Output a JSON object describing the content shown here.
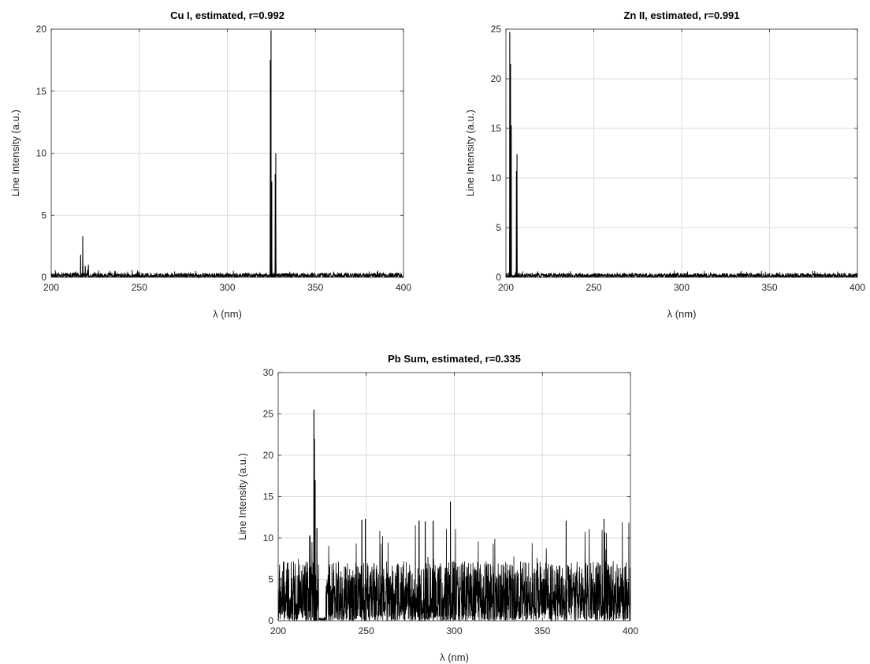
{
  "chart_data": [
    {
      "type": "line",
      "title": "Cu I, estimated, r=0.992",
      "xlabel": "λ (nm)",
      "ylabel": "Line Intensity (a.u.)",
      "xlim": [
        200,
        400
      ],
      "ylim": [
        0,
        20
      ],
      "xticks": [
        "200",
        "250",
        "300",
        "350",
        "400"
      ],
      "yticks": [
        "0",
        "5",
        "10",
        "15",
        "20"
      ],
      "grid": true,
      "series": [
        {
          "color": "#000000",
          "noise_floor": 0.3,
          "peaks": [
            {
              "x": 216.7,
              "y": 1.8
            },
            {
              "x": 217.9,
              "y": 3.3
            },
            {
              "x": 219.3,
              "y": 0.9
            },
            {
              "x": 221.1,
              "y": 1.0
            },
            {
              "x": 324.4,
              "y": 17.5
            },
            {
              "x": 324.8,
              "y": 19.9
            },
            {
              "x": 325.2,
              "y": 7.7
            },
            {
              "x": 327.2,
              "y": 8.3
            },
            {
              "x": 327.5,
              "y": 10.0
            }
          ]
        }
      ]
    },
    {
      "type": "line",
      "title": "Zn II, estimated, r=0.991",
      "xlabel": "λ (nm)",
      "ylabel": "Line Intensity (a.u.)",
      "xlim": [
        200,
        400
      ],
      "ylim": [
        0,
        25
      ],
      "xticks": [
        "200",
        "250",
        "300",
        "350",
        "400"
      ],
      "yticks": [
        "0",
        "5",
        "10",
        "15",
        "20",
        "25"
      ],
      "grid": true,
      "series": [
        {
          "color": "#000000",
          "noise_floor": 0.35,
          "peaks": [
            {
              "x": 202.2,
              "y": 24.7
            },
            {
              "x": 202.6,
              "y": 21.5
            },
            {
              "x": 203.0,
              "y": 15.3
            },
            {
              "x": 206.0,
              "y": 10.7
            },
            {
              "x": 206.3,
              "y": 12.4
            }
          ]
        }
      ]
    },
    {
      "type": "line",
      "title": "Pb Sum, estimated, r=0.335",
      "xlabel": "λ (nm)",
      "ylabel": "Line Intensity (a.u.)",
      "xlim": [
        200,
        400
      ],
      "ylim": [
        0,
        30
      ],
      "xticks": [
        "200",
        "250",
        "300",
        "350",
        "400"
      ],
      "yticks": [
        "0",
        "5",
        "10",
        "15",
        "20",
        "25",
        "30"
      ],
      "grid": true,
      "series": [
        {
          "color": "#000000",
          "noise_floor": 6.0,
          "gap": [
            223,
            227
          ],
          "peaks": [
            {
              "x": 220.3,
              "y": 25.5
            },
            {
              "x": 220.6,
              "y": 22.0
            },
            {
              "x": 221.0,
              "y": 17.0
            },
            {
              "x": 222.0,
              "y": 11.2
            },
            {
              "x": 247.5,
              "y": 12.2
            },
            {
              "x": 249.5,
              "y": 12.3
            },
            {
              "x": 280.0,
              "y": 12.1
            },
            {
              "x": 283.5,
              "y": 12.0
            },
            {
              "x": 288.0,
              "y": 12.1
            },
            {
              "x": 297.8,
              "y": 14.4
            },
            {
              "x": 363.5,
              "y": 12.1
            },
            {
              "x": 385.0,
              "y": 12.3
            }
          ]
        }
      ]
    }
  ]
}
